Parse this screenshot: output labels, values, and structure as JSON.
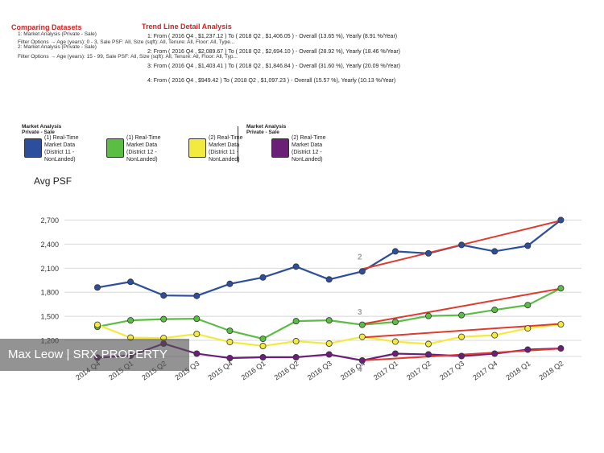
{
  "header": {
    "comparing_title": "Comparing Datasets",
    "dataset1": "1: Market Analysis (Private - Sale)",
    "dataset1_filter": "Filter Options → Age (years): 0 - 3, Sale PSF: All, Size (sqft): All, Tenure: All, Floor: All, Type...",
    "dataset2": "2: Market Analysis (Private - Sale)",
    "dataset2_filter": "Filter Options → Age (years): 15 - 99, Sale PSF: All, Size (sqft): All, Tenure: All, Floor: All, Typ...",
    "trend_title": "Trend Line Detail Analysis",
    "trend_lines": [
      "1: From ( 2016 Q4 , $1,237.12 ) To ( 2018 Q2 , $1,406.05 ) - Overall (13.65 %), Yearly (8.91 %/Year)",
      "2: From ( 2016 Q4 , $2,089.67 ) To ( 2018 Q2 , $2,694.10 ) - Overall (28.92 %), Yearly (18.46 %/Year)",
      "3: From ( 2016 Q4 , $1,403.41 ) To ( 2018 Q2 , $1,846.84 ) - Overall (31.60 %), Yearly (20.09 %/Year)",
      "4: From ( 2016 Q4 , $949.42 ) To ( 2018 Q2 , $1,097.23 ) - Overall (15.57 %), Yearly (10.13 %/Year)"
    ]
  },
  "legend": {
    "group1_title": "Market Analysis Private - Sale",
    "group2_title": "Market Analysis Private - Sale",
    "items": [
      {
        "label": "(1) Real-Time Market Data (District 11 - NonLanded)",
        "color": "#2c4e9c"
      },
      {
        "label": "(1) Real-Time Market Data (District 12 - NonLanded)",
        "color": "#5cbd44"
      },
      {
        "label": "(2) Real-Time Market Data (District 11 - NonLanded)",
        "color": "#f2ea3e"
      },
      {
        "label": "(2) Real-Time Market Data (District 12 - NonLanded)",
        "color": "#6b2078"
      }
    ]
  },
  "watermark": "Max Leow | SRX PROPERTY",
  "chart_data": {
    "type": "line",
    "ylabel": "Avg PSF",
    "categories": [
      "2014 Q4",
      "2015 Q1",
      "2015 Q2",
      "2015 Q3",
      "2015 Q4",
      "2016 Q1",
      "2016 Q2",
      "2016 Q3",
      "2016 Q4",
      "2017 Q1",
      "2017 Q2",
      "2017 Q3",
      "2017 Q4",
      "2018 Q1",
      "2018 Q2"
    ],
    "ylim": [
      900,
      2800
    ],
    "yticks": [
      "1,200",
      "1,500",
      "1,800",
      "2,100",
      "2,400",
      "2,700"
    ],
    "ytick_values": [
      1200,
      1500,
      1800,
      2100,
      2400,
      2700
    ],
    "grid": true,
    "series": [
      {
        "name": "(1) Real-Time Market Data (District 11 - NonLanded)",
        "color": "#2c4e9c",
        "values": [
          1860,
          1930,
          1760,
          1755,
          1905,
          1985,
          2120,
          1960,
          2060,
          2310,
          2285,
          2390,
          2310,
          2380,
          2700
        ]
      },
      {
        "name": "(1) Real-Time Market Data (District 12 - NonLanded)",
        "color": "#5cbd44",
        "values": [
          1370,
          1450,
          1465,
          1470,
          1320,
          1220,
          1440,
          1450,
          1395,
          1430,
          1505,
          1515,
          1580,
          1640,
          1850
        ]
      },
      {
        "name": "(2) Real-Time Market Data (District 11 - NonLanded)",
        "color": "#f2ea3e",
        "values": [
          1395,
          1235,
          1230,
          1280,
          1180,
          1130,
          1190,
          1160,
          1245,
          1185,
          1155,
          1245,
          1265,
          1350,
          1400
        ]
      },
      {
        "name": "(2) Real-Time Market Data (District 12 - NonLanded)",
        "color": "#6b2078",
        "values": [
          985,
          1010,
          1160,
          1035,
          980,
          990,
          990,
          1025,
          950,
          1035,
          1025,
          1005,
          1035,
          1085,
          1100
        ]
      }
    ],
    "trend_lines": [
      {
        "label": "1",
        "from": 1237.12,
        "to": 1406.05
      },
      {
        "label": "2",
        "from": 2089.67,
        "to": 2694.1
      },
      {
        "label": "3",
        "from": 1403.41,
        "to": 1846.84
      },
      {
        "label": "4",
        "from": 949.42,
        "to": 1097.23
      }
    ],
    "trend_from_index": 8,
    "trend_to_index": 14,
    "trend_color": "#e03a2f",
    "trend_label_color": "#a0a0a0"
  }
}
